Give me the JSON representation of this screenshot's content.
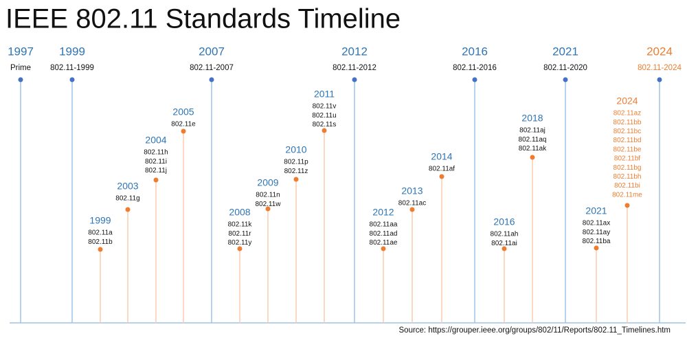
{
  "title": "IEEE 802.11 Standards Timeline",
  "rollups": [
    {
      "year": "1997",
      "label": "Prime"
    },
    {
      "year": "1999",
      "label": "802.11-1999"
    },
    {
      "year": "2007",
      "label": "802.11-2007"
    },
    {
      "year": "2012",
      "label": "802.11-2012"
    },
    {
      "year": "2016",
      "label": "802.11-2016"
    },
    {
      "year": "2021",
      "label": "802.11-2020"
    },
    {
      "year": "2024",
      "label": "802.11-2024"
    }
  ],
  "amendments": [
    {
      "year": "1999",
      "items": [
        "802.11a",
        "802.11b"
      ]
    },
    {
      "year": "2003",
      "items": [
        "802.11g"
      ]
    },
    {
      "year": "2004",
      "items": [
        "802.11h",
        "802.11i",
        "802.11j"
      ]
    },
    {
      "year": "2005",
      "items": [
        "802.11e"
      ]
    },
    {
      "year": "2008",
      "items": [
        "802.11k",
        "802.11r",
        "802.11y"
      ]
    },
    {
      "year": "2009",
      "items": [
        "802.11n",
        "802.11w"
      ]
    },
    {
      "year": "2010",
      "items": [
        "802.11p",
        "802.11z"
      ]
    },
    {
      "year": "2011",
      "items": [
        "802.11v",
        "802.11u",
        "802.11s"
      ]
    },
    {
      "year": "2012",
      "items": [
        "802.11aa",
        "802.11ad",
        "802.11ae"
      ]
    },
    {
      "year": "2013",
      "items": [
        "802.11ac"
      ]
    },
    {
      "year": "2014",
      "items": [
        "802.11af"
      ]
    },
    {
      "year": "2016",
      "items": [
        "802.11ah",
        "802.11ai"
      ]
    },
    {
      "year": "2018",
      "items": [
        "802.11aj",
        "802.11aq",
        "802.11ak"
      ]
    },
    {
      "year": "2021",
      "items": [
        "802.11ax",
        "802.11ay",
        "802.11ba"
      ]
    },
    {
      "year": "2024",
      "items": [
        "802.11az",
        "802.11bb",
        "802.11bc",
        "802.11bd",
        "802.11be",
        "802.11bf",
        "802.11bg",
        "802.11bh",
        "802.11bi",
        "802.11me"
      ]
    }
  ],
  "source": "Source: https://grouper.ieee.org/groups/802/11/Reports/802.11_Timelines.htm"
}
